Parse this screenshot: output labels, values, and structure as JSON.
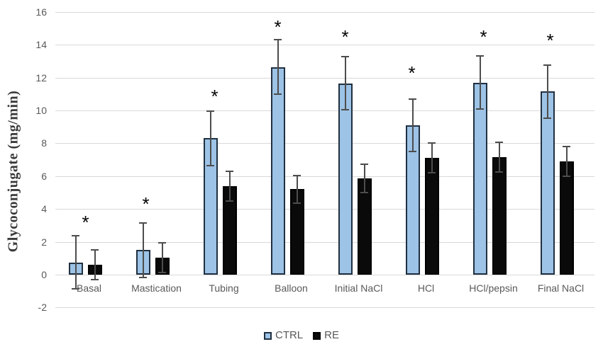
{
  "chart_data": {
    "type": "bar",
    "title": "",
    "ylabel": "Glycoconjugate (mg/min)",
    "xlabel": "",
    "ylim": [
      -2,
      16
    ],
    "ytick_step": 2,
    "grid": true,
    "legend_position": "bottom",
    "categories": [
      "Basal",
      "Mastication",
      "Tubing",
      "Balloon",
      "Initial NaCl",
      "HCl",
      "HCl/pepsin",
      "Final NaCl"
    ],
    "series": [
      {
        "name": "CTRL",
        "fill": "#9DC3E6",
        "border": "#203040",
        "values": [
          0.75,
          1.5,
          8.3,
          12.65,
          11.65,
          9.1,
          11.7,
          11.15
        ],
        "errors": [
          1.65,
          1.7,
          1.7,
          1.7,
          1.65,
          1.65,
          1.65,
          1.65
        ]
      },
      {
        "name": "RE",
        "fill": "#0A0A0A",
        "border": "#000000",
        "values": [
          0.6,
          1.05,
          5.4,
          5.2,
          5.85,
          7.1,
          7.15,
          6.9
        ],
        "errors": [
          0.95,
          0.95,
          0.95,
          0.9,
          0.9,
          0.95,
          0.95,
          0.95
        ]
      }
    ],
    "annotations": [
      {
        "category": "Basal",
        "text": "*",
        "y": 3.3,
        "dx": 14
      },
      {
        "category": "Mastication",
        "text": "*",
        "y": 4.45,
        "dx": 4
      },
      {
        "category": "Tubing",
        "text": "*",
        "y": 11.0,
        "dx": 6
      },
      {
        "category": "Balloon",
        "text": "*",
        "y": 15.2,
        "dx": 0
      },
      {
        "category": "Initial NaCl",
        "text": "*",
        "y": 14.6,
        "dx": 0
      },
      {
        "category": "HCl",
        "text": "*",
        "y": 12.4,
        "dx": -1
      },
      {
        "category": "HCl/pepsin",
        "text": "*",
        "y": 14.6,
        "dx": 5
      },
      {
        "category": "Final NaCl",
        "text": "*",
        "y": 14.4,
        "dx": 4
      }
    ],
    "colors": {
      "grid": "#D9D9D9",
      "error_bar": "#4d4d4d",
      "tick_text": "#595959",
      "axis_title_text": "#3a3a3a",
      "annotation": "#000000"
    }
  },
  "legend": {
    "items": [
      {
        "label": "CTRL",
        "fill": "#9DC3E6",
        "border": "#203040"
      },
      {
        "label": "RE",
        "fill": "#0A0A0A",
        "border": "#000000"
      }
    ]
  }
}
